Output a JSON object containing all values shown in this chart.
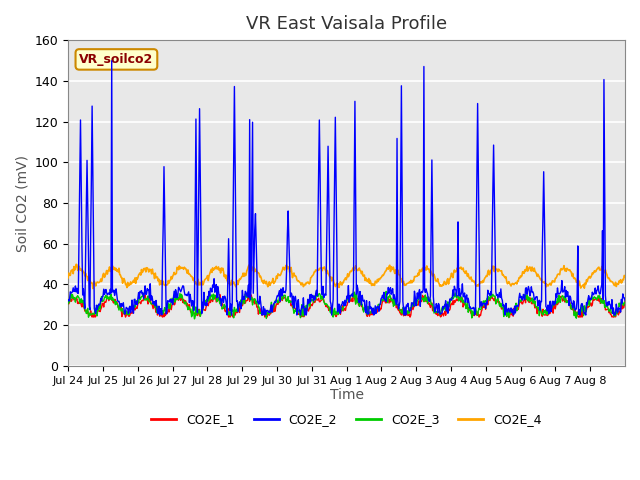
{
  "title": "VR East Vaisala Profile",
  "xlabel": "Time",
  "ylabel": "Soil CO2 (mV)",
  "annotation": "VR_soilco2",
  "ylim": [
    0,
    160
  ],
  "yticks": [
    0,
    20,
    40,
    60,
    80,
    100,
    120,
    140,
    160
  ],
  "x_labels": [
    "Jul 24",
    "Jul 25",
    "Jul 26",
    "Jul 27",
    "Jul 28",
    "Jul 29",
    "Jul 30",
    "Jul 31",
    "Aug 1",
    "Aug 2",
    "Aug 3",
    "Aug 4",
    "Aug 5",
    "Aug 6",
    "Aug 7",
    "Aug 8"
  ],
  "colors": {
    "CO2E_1": "#ff0000",
    "CO2E_2": "#0000ff",
    "CO2E_3": "#00cc00",
    "CO2E_4": "#ffa500"
  },
  "bg_color": "#e8e8e8",
  "fig_bg": "#ffffff",
  "title_fontsize": 13,
  "label_fontsize": 10
}
